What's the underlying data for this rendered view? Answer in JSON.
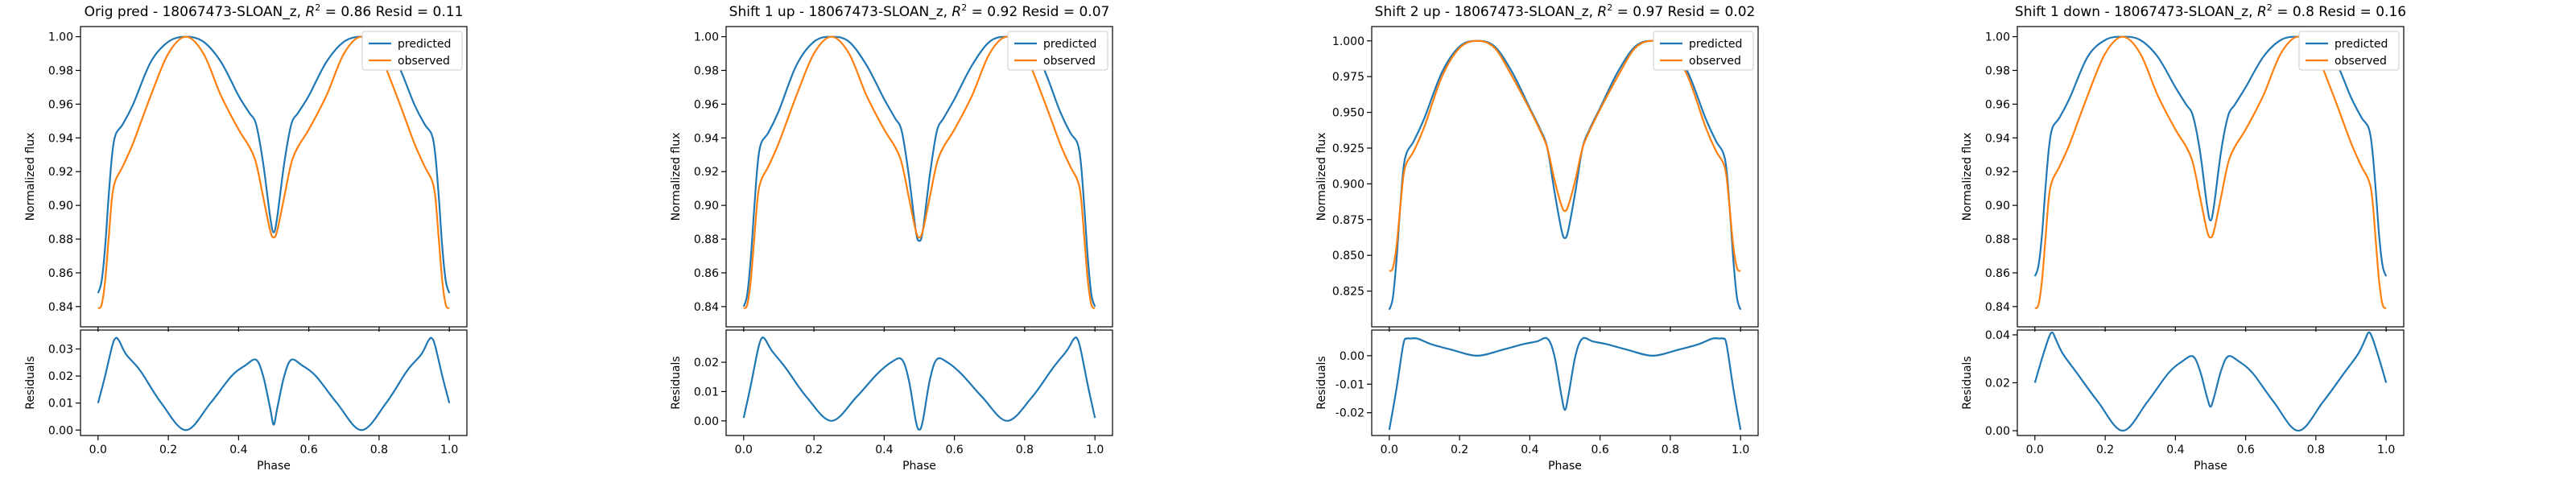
{
  "colors": {
    "predicted": "#1f77b4",
    "observed": "#ff7f0e",
    "axes": "#000000"
  },
  "chart_data": [
    {
      "type": "line",
      "title_plain": "Orig pred - 18067473-SLOAN_z, ",
      "title_r2": "R",
      "title_sup": "2",
      "title_rest": " = 0.86 Resid = 0.11",
      "xlabel": "Phase",
      "ylabel_top": "Normalized flux",
      "ylabel_bottom": "Residuals",
      "legend": [
        "predicted",
        "observed"
      ],
      "legend_position": "top-right",
      "xlim": [
        -0.05,
        1.05
      ],
      "xticks": [
        "0.0",
        "0.2",
        "0.4",
        "0.6",
        "0.8",
        "1.0"
      ],
      "top_ylim": [
        0.828,
        1.006
      ],
      "top_yticks": [
        "0.84",
        "0.86",
        "0.88",
        "0.90",
        "0.92",
        "0.94",
        "0.96",
        "0.98",
        "1.00"
      ],
      "bottom_ylim": [
        -0.002,
        0.037
      ],
      "bottom_yticks": [
        "0.00",
        "0.01",
        "0.02",
        "0.03"
      ],
      "predicted": {
        "x": [
          0.0,
          0.01,
          0.02,
          0.03,
          0.04,
          0.05,
          0.07,
          0.1,
          0.15,
          0.2,
          0.25,
          0.3,
          0.35,
          0.4,
          0.43,
          0.45,
          0.47,
          0.49,
          0.5,
          0.51,
          0.53,
          0.55,
          0.57,
          0.6,
          0.65,
          0.7,
          0.75,
          0.8,
          0.85,
          0.9,
          0.93,
          0.95,
          0.96,
          0.97,
          0.98,
          0.99,
          1.0
        ],
        "y": [
          0.848,
          0.855,
          0.875,
          0.905,
          0.93,
          0.942,
          0.948,
          0.96,
          0.985,
          0.997,
          1.0,
          0.997,
          0.985,
          0.965,
          0.955,
          0.948,
          0.925,
          0.893,
          0.884,
          0.893,
          0.925,
          0.948,
          0.955,
          0.965,
          0.985,
          0.997,
          1.0,
          0.997,
          0.985,
          0.96,
          0.948,
          0.942,
          0.93,
          0.905,
          0.875,
          0.855,
          0.848
        ]
      },
      "observed": {
        "x": [
          0.0,
          0.01,
          0.02,
          0.03,
          0.04,
          0.05,
          0.07,
          0.1,
          0.15,
          0.2,
          0.25,
          0.3,
          0.35,
          0.4,
          0.43,
          0.45,
          0.47,
          0.49,
          0.5,
          0.51,
          0.53,
          0.55,
          0.57,
          0.6,
          0.65,
          0.7,
          0.75,
          0.8,
          0.85,
          0.9,
          0.93,
          0.95,
          0.96,
          0.97,
          0.98,
          0.99,
          1.0
        ],
        "y": [
          0.839,
          0.841,
          0.855,
          0.88,
          0.905,
          0.915,
          0.923,
          0.937,
          0.965,
          0.99,
          1.0,
          0.99,
          0.965,
          0.945,
          0.935,
          0.925,
          0.905,
          0.885,
          0.881,
          0.885,
          0.905,
          0.925,
          0.935,
          0.945,
          0.965,
          0.99,
          1.0,
          0.99,
          0.965,
          0.937,
          0.923,
          0.915,
          0.905,
          0.88,
          0.855,
          0.841,
          0.839
        ]
      },
      "residuals": {
        "x": [
          0.0,
          0.02,
          0.04,
          0.05,
          0.06,
          0.08,
          0.12,
          0.18,
          0.25,
          0.32,
          0.38,
          0.42,
          0.45,
          0.47,
          0.49,
          0.5,
          0.51,
          0.53,
          0.55,
          0.58,
          0.62,
          0.68,
          0.75,
          0.82,
          0.88,
          0.92,
          0.94,
          0.95,
          0.96,
          0.98,
          1.0
        ],
        "y": [
          0.01,
          0.02,
          0.031,
          0.034,
          0.033,
          0.028,
          0.022,
          0.01,
          0.0,
          0.01,
          0.02,
          0.024,
          0.026,
          0.02,
          0.008,
          0.002,
          0.008,
          0.02,
          0.026,
          0.024,
          0.02,
          0.01,
          0.0,
          0.01,
          0.022,
          0.028,
          0.033,
          0.034,
          0.031,
          0.02,
          0.01
        ]
      }
    },
    {
      "type": "line",
      "title_plain": "Shift 1 up - 18067473-SLOAN_z, ",
      "title_r2": "R",
      "title_sup": "2",
      "title_rest": " = 0.92 Resid = 0.07",
      "xlabel": "Phase",
      "ylabel_top": "Normalized flux",
      "ylabel_bottom": "Residuals",
      "legend": [
        "predicted",
        "observed"
      ],
      "legend_position": "top-right",
      "xlim": [
        -0.05,
        1.05
      ],
      "xticks": [
        "0.0",
        "0.2",
        "0.4",
        "0.6",
        "0.8",
        "1.0"
      ],
      "top_ylim": [
        0.828,
        1.006
      ],
      "top_yticks": [
        "0.84",
        "0.86",
        "0.88",
        "0.90",
        "0.92",
        "0.94",
        "0.96",
        "0.98",
        "1.00"
      ],
      "bottom_ylim": [
        -0.005,
        0.031
      ],
      "bottom_yticks": [
        "0.00",
        "0.01",
        "0.02"
      ],
      "predicted": {
        "x": [
          0.0,
          0.01,
          0.02,
          0.03,
          0.04,
          0.05,
          0.07,
          0.1,
          0.15,
          0.2,
          0.25,
          0.3,
          0.35,
          0.4,
          0.43,
          0.45,
          0.47,
          0.49,
          0.5,
          0.51,
          0.53,
          0.55,
          0.57,
          0.6,
          0.65,
          0.7,
          0.75,
          0.8,
          0.85,
          0.9,
          0.93,
          0.95,
          0.96,
          0.97,
          0.98,
          0.99,
          1.0
        ],
        "y": [
          0.84,
          0.847,
          0.868,
          0.898,
          0.925,
          0.937,
          0.943,
          0.956,
          0.983,
          0.997,
          1.0,
          0.997,
          0.983,
          0.963,
          0.952,
          0.944,
          0.918,
          0.885,
          0.879,
          0.885,
          0.918,
          0.944,
          0.952,
          0.963,
          0.983,
          0.997,
          1.0,
          0.997,
          0.983,
          0.956,
          0.943,
          0.937,
          0.925,
          0.898,
          0.868,
          0.847,
          0.84
        ]
      },
      "observed": {
        "x": [
          0.0,
          0.01,
          0.02,
          0.03,
          0.04,
          0.05,
          0.07,
          0.1,
          0.15,
          0.2,
          0.25,
          0.3,
          0.35,
          0.4,
          0.43,
          0.45,
          0.47,
          0.49,
          0.5,
          0.51,
          0.53,
          0.55,
          0.57,
          0.6,
          0.65,
          0.7,
          0.75,
          0.8,
          0.85,
          0.9,
          0.93,
          0.95,
          0.96,
          0.97,
          0.98,
          0.99,
          1.0
        ],
        "y": [
          0.839,
          0.841,
          0.855,
          0.88,
          0.905,
          0.915,
          0.923,
          0.937,
          0.965,
          0.99,
          1.0,
          0.99,
          0.965,
          0.945,
          0.935,
          0.925,
          0.905,
          0.885,
          0.881,
          0.885,
          0.905,
          0.925,
          0.935,
          0.945,
          0.965,
          0.99,
          1.0,
          0.99,
          0.965,
          0.937,
          0.923,
          0.915,
          0.905,
          0.88,
          0.855,
          0.841,
          0.839
        ]
      },
      "residuals": {
        "x": [
          0.0,
          0.02,
          0.04,
          0.05,
          0.06,
          0.08,
          0.12,
          0.18,
          0.25,
          0.32,
          0.38,
          0.42,
          0.45,
          0.47,
          0.49,
          0.5,
          0.51,
          0.53,
          0.55,
          0.58,
          0.62,
          0.68,
          0.75,
          0.82,
          0.88,
          0.92,
          0.94,
          0.95,
          0.96,
          0.98,
          1.0
        ],
        "y": [
          0.001,
          0.012,
          0.024,
          0.028,
          0.028,
          0.024,
          0.018,
          0.008,
          0.0,
          0.008,
          0.016,
          0.02,
          0.021,
          0.014,
          0.0,
          -0.003,
          0.0,
          0.014,
          0.021,
          0.02,
          0.016,
          0.008,
          0.0,
          0.008,
          0.018,
          0.024,
          0.028,
          0.028,
          0.024,
          0.012,
          0.001
        ]
      }
    },
    {
      "type": "line",
      "title_plain": "Shift 2 up - 18067473-SLOAN_z, ",
      "title_r2": "R",
      "title_sup": "2",
      "title_rest": " = 0.97 Resid = 0.02",
      "xlabel": "Phase",
      "ylabel_top": "Normalized flux",
      "ylabel_bottom": "Residuals",
      "legend": [
        "predicted",
        "observed"
      ],
      "legend_position": "top-right",
      "xlim": [
        -0.05,
        1.05
      ],
      "xticks": [
        "0.0",
        "0.2",
        "0.4",
        "0.6",
        "0.8",
        "1.0"
      ],
      "top_ylim": [
        0.8,
        1.01
      ],
      "top_yticks": [
        "0.825",
        "0.850",
        "0.875",
        "0.900",
        "0.925",
        "0.950",
        "0.975",
        "1.000"
      ],
      "bottom_ylim": [
        -0.028,
        0.009
      ],
      "bottom_yticks": [
        "-0.02",
        "-0.01",
        "0.00"
      ],
      "predicted": {
        "x": [
          0.0,
          0.01,
          0.02,
          0.03,
          0.04,
          0.05,
          0.07,
          0.1,
          0.15,
          0.2,
          0.25,
          0.3,
          0.35,
          0.4,
          0.43,
          0.45,
          0.47,
          0.49,
          0.5,
          0.51,
          0.53,
          0.55,
          0.57,
          0.6,
          0.65,
          0.7,
          0.75,
          0.8,
          0.85,
          0.9,
          0.93,
          0.95,
          0.96,
          0.97,
          0.98,
          0.99,
          1.0
        ],
        "y": [
          0.812,
          0.82,
          0.845,
          0.88,
          0.91,
          0.922,
          0.93,
          0.946,
          0.978,
          0.996,
          1.0,
          0.996,
          0.978,
          0.953,
          0.938,
          0.925,
          0.895,
          0.868,
          0.862,
          0.868,
          0.895,
          0.925,
          0.938,
          0.953,
          0.978,
          0.996,
          1.0,
          0.996,
          0.978,
          0.946,
          0.93,
          0.922,
          0.91,
          0.88,
          0.845,
          0.82,
          0.812
        ]
      },
      "observed": {
        "x": [
          0.0,
          0.01,
          0.02,
          0.03,
          0.04,
          0.05,
          0.07,
          0.1,
          0.15,
          0.2,
          0.25,
          0.3,
          0.35,
          0.4,
          0.43,
          0.45,
          0.47,
          0.49,
          0.5,
          0.51,
          0.53,
          0.55,
          0.57,
          0.6,
          0.65,
          0.7,
          0.75,
          0.8,
          0.85,
          0.9,
          0.93,
          0.95,
          0.96,
          0.97,
          0.98,
          0.99,
          1.0
        ],
        "y": [
          0.839,
          0.841,
          0.855,
          0.88,
          0.905,
          0.915,
          0.923,
          0.94,
          0.975,
          0.995,
          1.0,
          0.995,
          0.975,
          0.952,
          0.937,
          0.925,
          0.903,
          0.885,
          0.881,
          0.885,
          0.903,
          0.925,
          0.937,
          0.952,
          0.975,
          0.995,
          1.0,
          0.995,
          0.975,
          0.94,
          0.923,
          0.915,
          0.905,
          0.88,
          0.855,
          0.841,
          0.839
        ]
      },
      "residuals": {
        "x": [
          0.0,
          0.02,
          0.04,
          0.05,
          0.06,
          0.08,
          0.12,
          0.18,
          0.25,
          0.32,
          0.38,
          0.42,
          0.45,
          0.47,
          0.49,
          0.5,
          0.51,
          0.53,
          0.55,
          0.58,
          0.62,
          0.68,
          0.75,
          0.82,
          0.88,
          0.92,
          0.94,
          0.95,
          0.96,
          0.98,
          1.0
        ],
        "y": [
          -0.026,
          -0.012,
          0.004,
          0.006,
          0.006,
          0.006,
          0.004,
          0.002,
          0.0,
          0.002,
          0.004,
          0.005,
          0.006,
          0.0,
          -0.014,
          -0.019,
          -0.014,
          0.0,
          0.006,
          0.005,
          0.004,
          0.002,
          0.0,
          0.002,
          0.004,
          0.006,
          0.006,
          0.006,
          0.004,
          -0.012,
          -0.026
        ]
      }
    },
    {
      "type": "line",
      "title_plain": "Shift 1 down - 18067473-SLOAN_z, ",
      "title_r2": "R",
      "title_sup": "2",
      "title_rest": " = 0.8 Resid = 0.16",
      "xlabel": "Phase",
      "ylabel_top": "Normalized flux",
      "ylabel_bottom": "Residuals",
      "legend": [
        "predicted",
        "observed"
      ],
      "legend_position": "top-right",
      "xlim": [
        -0.05,
        1.05
      ],
      "xticks": [
        "0.0",
        "0.2",
        "0.4",
        "0.6",
        "0.8",
        "1.0"
      ],
      "top_ylim": [
        0.828,
        1.006
      ],
      "top_yticks": [
        "0.84",
        "0.86",
        "0.88",
        "0.90",
        "0.92",
        "0.94",
        "0.96",
        "0.98",
        "1.00"
      ],
      "bottom_ylim": [
        -0.002,
        0.042
      ],
      "bottom_yticks": [
        "0.00",
        "0.02",
        "0.04"
      ],
      "predicted": {
        "x": [
          0.0,
          0.01,
          0.02,
          0.03,
          0.04,
          0.05,
          0.07,
          0.1,
          0.15,
          0.2,
          0.25,
          0.3,
          0.35,
          0.4,
          0.43,
          0.45,
          0.47,
          0.49,
          0.5,
          0.51,
          0.53,
          0.55,
          0.57,
          0.6,
          0.65,
          0.7,
          0.75,
          0.8,
          0.85,
          0.9,
          0.93,
          0.95,
          0.96,
          0.97,
          0.98,
          0.99,
          1.0
        ],
        "y": [
          0.858,
          0.864,
          0.882,
          0.91,
          0.934,
          0.946,
          0.952,
          0.964,
          0.988,
          0.998,
          1.0,
          0.998,
          0.988,
          0.97,
          0.96,
          0.953,
          0.932,
          0.9,
          0.891,
          0.9,
          0.932,
          0.953,
          0.96,
          0.97,
          0.988,
          0.998,
          1.0,
          0.998,
          0.988,
          0.964,
          0.952,
          0.946,
          0.934,
          0.91,
          0.882,
          0.864,
          0.858
        ]
      },
      "observed": {
        "x": [
          0.0,
          0.01,
          0.02,
          0.03,
          0.04,
          0.05,
          0.07,
          0.1,
          0.15,
          0.2,
          0.25,
          0.3,
          0.35,
          0.4,
          0.43,
          0.45,
          0.47,
          0.49,
          0.5,
          0.51,
          0.53,
          0.55,
          0.57,
          0.6,
          0.65,
          0.7,
          0.75,
          0.8,
          0.85,
          0.9,
          0.93,
          0.95,
          0.96,
          0.97,
          0.98,
          0.99,
          1.0
        ],
        "y": [
          0.839,
          0.841,
          0.855,
          0.88,
          0.905,
          0.915,
          0.923,
          0.937,
          0.965,
          0.99,
          1.0,
          0.99,
          0.965,
          0.945,
          0.935,
          0.925,
          0.905,
          0.885,
          0.881,
          0.885,
          0.905,
          0.925,
          0.935,
          0.945,
          0.965,
          0.99,
          1.0,
          0.99,
          0.965,
          0.937,
          0.923,
          0.915,
          0.905,
          0.88,
          0.855,
          0.841,
          0.839
        ]
      },
      "residuals": {
        "x": [
          0.0,
          0.02,
          0.04,
          0.05,
          0.06,
          0.08,
          0.12,
          0.18,
          0.25,
          0.32,
          0.38,
          0.42,
          0.45,
          0.47,
          0.49,
          0.5,
          0.51,
          0.53,
          0.55,
          0.58,
          0.62,
          0.68,
          0.75,
          0.82,
          0.88,
          0.92,
          0.94,
          0.95,
          0.96,
          0.98,
          1.0
        ],
        "y": [
          0.02,
          0.03,
          0.039,
          0.041,
          0.038,
          0.032,
          0.024,
          0.012,
          0.0,
          0.012,
          0.024,
          0.029,
          0.031,
          0.025,
          0.014,
          0.01,
          0.014,
          0.025,
          0.031,
          0.029,
          0.024,
          0.012,
          0.0,
          0.012,
          0.024,
          0.032,
          0.038,
          0.041,
          0.039,
          0.03,
          0.02
        ]
      }
    }
  ]
}
